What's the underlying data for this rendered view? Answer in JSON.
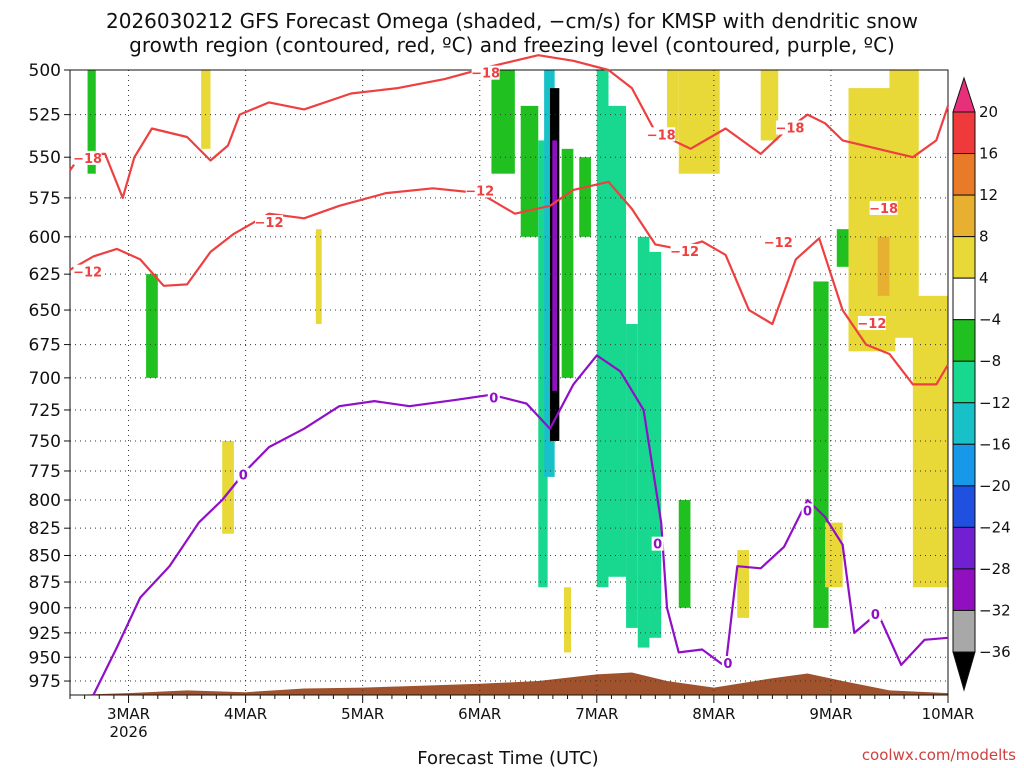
{
  "chart_data": {
    "type": "heatmap",
    "title_line1": "2026030212 GFS Forecast Omega (shaded, −cm/s) for KMSP with dendritic snow",
    "title_line2": "growth region (contoured, red, ºC) and freezing level (contoured, purple, ºC)",
    "xlabel": "Forecast Time (UTC)",
    "credit": "coolwx.com/modelts",
    "x_ticks": [
      {
        "label": "3MAR",
        "sub": "2026",
        "day": 3
      },
      {
        "label": "4MAR",
        "sub": "",
        "day": 4
      },
      {
        "label": "5MAR",
        "sub": "",
        "day": 5
      },
      {
        "label": "6MAR",
        "sub": "",
        "day": 6
      },
      {
        "label": "7MAR",
        "sub": "",
        "day": 7
      },
      {
        "label": "8MAR",
        "sub": "",
        "day": 8
      },
      {
        "label": "9MAR",
        "sub": "",
        "day": 9
      },
      {
        "label": "10MAR",
        "sub": "",
        "day": 10
      }
    ],
    "xlim": [
      2.5,
      10.0
    ],
    "y_ticks": [
      "500",
      "525",
      "550",
      "575",
      "600",
      "625",
      "650",
      "675",
      "700",
      "725",
      "750",
      "775",
      "800",
      "825",
      "850",
      "875",
      "900",
      "925",
      "950",
      "975"
    ],
    "ylim": [
      500,
      990
    ],
    "y_scale": "log",
    "grid": true,
    "colorbar": {
      "labels": [
        "20",
        "16",
        "12",
        "8",
        "4",
        "−4",
        "−8",
        "−12",
        "−16",
        "−20",
        "−24",
        "−28",
        "−32",
        "−36"
      ],
      "colors": [
        "#e8307a",
        "#ee3a3a",
        "#e87a28",
        "#e8b030",
        "#e8d838",
        "#ffffff",
        "#20c020",
        "#18d890",
        "#18c0c8",
        "#1898e8",
        "#2050e0",
        "#7020d0",
        "#9010c0",
        "#a8a8a8",
        "#000000"
      ]
    },
    "contour_labels": {
      "dgz_cold": "−18",
      "dgz_warm": "−12",
      "freezing": "0"
    },
    "dgz_minus18": [
      [
        2.5,
        558
      ],
      [
        2.6,
        548
      ],
      [
        2.8,
        548
      ],
      [
        2.95,
        575
      ],
      [
        3.05,
        550
      ],
      [
        3.2,
        533
      ],
      [
        3.5,
        538
      ],
      [
        3.7,
        552
      ],
      [
        3.85,
        543
      ],
      [
        3.95,
        525
      ],
      [
        4.2,
        518
      ],
      [
        4.5,
        522
      ],
      [
        4.9,
        513
      ],
      [
        5.3,
        510
      ],
      [
        5.7,
        505
      ],
      [
        6.1,
        498
      ],
      [
        6.5,
        492
      ],
      [
        6.8,
        495
      ],
      [
        7.1,
        500
      ],
      [
        7.3,
        510
      ],
      [
        7.5,
        535
      ],
      [
        7.8,
        545
      ],
      [
        8.1,
        533
      ],
      [
        8.4,
        548
      ],
      [
        8.6,
        535
      ],
      [
        8.8,
        525
      ],
      [
        8.95,
        530
      ],
      [
        9.1,
        540
      ],
      [
        9.4,
        545
      ],
      [
        9.7,
        550
      ],
      [
        9.9,
        540
      ],
      [
        10.0,
        520
      ]
    ],
    "dgz_minus12": [
      [
        2.5,
        622
      ],
      [
        2.7,
        613
      ],
      [
        2.9,
        608
      ],
      [
        3.1,
        615
      ],
      [
        3.3,
        633
      ],
      [
        3.5,
        632
      ],
      [
        3.7,
        610
      ],
      [
        3.9,
        598
      ],
      [
        4.2,
        585
      ],
      [
        4.5,
        588
      ],
      [
        4.8,
        580
      ],
      [
        5.2,
        572
      ],
      [
        5.6,
        569
      ],
      [
        6.0,
        572
      ],
      [
        6.3,
        585
      ],
      [
        6.6,
        580
      ],
      [
        6.8,
        570
      ],
      [
        7.1,
        565
      ],
      [
        7.3,
        582
      ],
      [
        7.5,
        605
      ],
      [
        7.7,
        608
      ],
      [
        7.9,
        603
      ],
      [
        8.1,
        612
      ],
      [
        8.3,
        650
      ],
      [
        8.5,
        660
      ],
      [
        8.7,
        615
      ],
      [
        8.9,
        601
      ],
      [
        9.1,
        650
      ],
      [
        9.3,
        675
      ],
      [
        9.5,
        682
      ],
      [
        9.7,
        705
      ],
      [
        9.9,
        705
      ],
      [
        10.0,
        690
      ]
    ],
    "freezing_level": [
      [
        2.7,
        990
      ],
      [
        2.9,
        940
      ],
      [
        3.1,
        890
      ],
      [
        3.35,
        860
      ],
      [
        3.6,
        820
      ],
      [
        3.8,
        800
      ],
      [
        4.0,
        775
      ],
      [
        4.2,
        755
      ],
      [
        4.5,
        740
      ],
      [
        4.8,
        722
      ],
      [
        5.1,
        718
      ],
      [
        5.4,
        722
      ],
      [
        5.8,
        717
      ],
      [
        6.1,
        713
      ],
      [
        6.4,
        720
      ],
      [
        6.6,
        740
      ],
      [
        6.8,
        705
      ],
      [
        7.0,
        683
      ],
      [
        7.2,
        695
      ],
      [
        7.4,
        725
      ],
      [
        7.55,
        820
      ],
      [
        7.6,
        900
      ],
      [
        7.7,
        945
      ],
      [
        7.9,
        942
      ],
      [
        8.1,
        960
      ],
      [
        8.2,
        860
      ],
      [
        8.4,
        862
      ],
      [
        8.6,
        842
      ],
      [
        8.8,
        800
      ],
      [
        8.95,
        815
      ],
      [
        9.1,
        840
      ],
      [
        9.2,
        925
      ],
      [
        9.4,
        905
      ],
      [
        9.6,
        958
      ],
      [
        9.8,
        932
      ],
      [
        10.0,
        930
      ]
    ],
    "omega_bands": [
      {
        "x0": 2.65,
        "x1": 2.72,
        "p0": 500,
        "p1": 560,
        "value": -6
      },
      {
        "x0": 3.15,
        "x1": 3.25,
        "p0": 625,
        "p1": 700,
        "value": -6
      },
      {
        "x0": 3.62,
        "x1": 3.7,
        "p0": 500,
        "p1": 545,
        "value": 5
      },
      {
        "x0": 3.8,
        "x1": 3.9,
        "p0": 750,
        "p1": 830,
        "value": 5
      },
      {
        "x0": 4.6,
        "x1": 4.65,
        "p0": 595,
        "p1": 660,
        "value": 5
      },
      {
        "x0": 6.1,
        "x1": 6.3,
        "p0": 500,
        "p1": 560,
        "value": -7
      },
      {
        "x0": 6.35,
        "x1": 6.5,
        "p0": 520,
        "p1": 600,
        "value": -7
      },
      {
        "x0": 6.5,
        "x1": 6.58,
        "p0": 540,
        "p1": 880,
        "value": -9
      },
      {
        "x0": 6.55,
        "x1": 6.64,
        "p0": 500,
        "p1": 780,
        "value": -14
      },
      {
        "x0": 6.6,
        "x1": 6.68,
        "p0": 510,
        "p1": 750,
        "value": -36
      },
      {
        "x0": 6.62,
        "x1": 6.66,
        "p0": 540,
        "p1": 710,
        "value": -30
      },
      {
        "x0": 6.7,
        "x1": 6.8,
        "p0": 545,
        "p1": 700,
        "value": -7
      },
      {
        "x0": 6.72,
        "x1": 6.78,
        "p0": 880,
        "p1": 945,
        "value": 5
      },
      {
        "x0": 6.85,
        "x1": 6.95,
        "p0": 550,
        "p1": 600,
        "value": -7
      },
      {
        "x0": 7.0,
        "x1": 7.1,
        "p0": 500,
        "p1": 880,
        "value": -8
      },
      {
        "x0": 7.1,
        "x1": 7.25,
        "p0": 520,
        "p1": 870,
        "value": -10
      },
      {
        "x0": 7.25,
        "x1": 7.35,
        "p0": 660,
        "p1": 920,
        "value": -8
      },
      {
        "x0": 7.35,
        "x1": 7.45,
        "p0": 600,
        "p1": 940,
        "value": -8
      },
      {
        "x0": 7.45,
        "x1": 7.55,
        "p0": 610,
        "p1": 930,
        "value": -10
      },
      {
        "x0": 7.6,
        "x1": 7.7,
        "p0": 500,
        "p1": 540,
        "value": 6
      },
      {
        "x0": 7.7,
        "x1": 7.8,
        "p0": 800,
        "p1": 900,
        "value": -7
      },
      {
        "x0": 7.7,
        "x1": 8.05,
        "p0": 500,
        "p1": 560,
        "value": 5
      },
      {
        "x0": 8.2,
        "x1": 8.3,
        "p0": 845,
        "p1": 910,
        "value": 5
      },
      {
        "x0": 8.4,
        "x1": 8.55,
        "p0": 500,
        "p1": 540,
        "value": 5
      },
      {
        "x0": 8.85,
        "x1": 8.98,
        "p0": 630,
        "p1": 920,
        "value": -7
      },
      {
        "x0": 8.95,
        "x1": 9.1,
        "p0": 820,
        "p1": 880,
        "value": 5
      },
      {
        "x0": 9.05,
        "x1": 9.15,
        "p0": 595,
        "p1": 620,
        "value": -7
      },
      {
        "x0": 9.15,
        "x1": 9.55,
        "p0": 510,
        "p1": 680,
        "value": 5
      },
      {
        "x0": 9.4,
        "x1": 9.5,
        "p0": 600,
        "p1": 640,
        "value": 10
      },
      {
        "x0": 9.5,
        "x1": 9.75,
        "p0": 500,
        "p1": 670,
        "value": 5
      },
      {
        "x0": 9.7,
        "x1": 10.0,
        "p0": 640,
        "p1": 880,
        "value": 5
      }
    ],
    "terrain_top_hpa": [
      [
        2.5,
        990
      ],
      [
        3.0,
        988
      ],
      [
        3.5,
        985
      ],
      [
        4.0,
        987
      ],
      [
        4.5,
        983
      ],
      [
        5.0,
        982
      ],
      [
        5.5,
        980
      ],
      [
        6.0,
        978
      ],
      [
        6.5,
        975
      ],
      [
        7.0,
        968
      ],
      [
        7.3,
        966
      ],
      [
        7.6,
        975
      ],
      [
        8.0,
        982
      ],
      [
        8.5,
        972
      ],
      [
        8.8,
        967
      ],
      [
        9.1,
        975
      ],
      [
        9.5,
        985
      ],
      [
        10.0,
        988
      ]
    ],
    "contour_label_positions": [
      {
        "key": "dgz_cold",
        "x": 2.65,
        "p": 551
      },
      {
        "key": "dgz_cold",
        "x": 6.05,
        "p": 502
      },
      {
        "key": "dgz_cold",
        "x": 7.55,
        "p": 537
      },
      {
        "key": "dgz_cold",
        "x": 8.65,
        "p": 533
      },
      {
        "key": "dgz_cold",
        "x": 9.45,
        "p": 582
      },
      {
        "key": "dgz_warm",
        "x": 2.65,
        "p": 624
      },
      {
        "key": "dgz_warm",
        "x": 4.2,
        "p": 591
      },
      {
        "key": "dgz_warm",
        "x": 6.0,
        "p": 571
      },
      {
        "key": "dgz_warm",
        "x": 7.75,
        "p": 610
      },
      {
        "key": "dgz_warm",
        "x": 8.55,
        "p": 604
      },
      {
        "key": "dgz_warm",
        "x": 9.35,
        "p": 660
      },
      {
        "key": "freezing",
        "x": 3.98,
        "p": 779
      },
      {
        "key": "freezing",
        "x": 6.12,
        "p": 716
      },
      {
        "key": "freezing",
        "x": 7.52,
        "p": 840
      },
      {
        "key": "freezing",
        "x": 8.12,
        "p": 957
      },
      {
        "key": "freezing",
        "x": 8.8,
        "p": 810
      },
      {
        "key": "freezing",
        "x": 9.38,
        "p": 907
      }
    ]
  }
}
